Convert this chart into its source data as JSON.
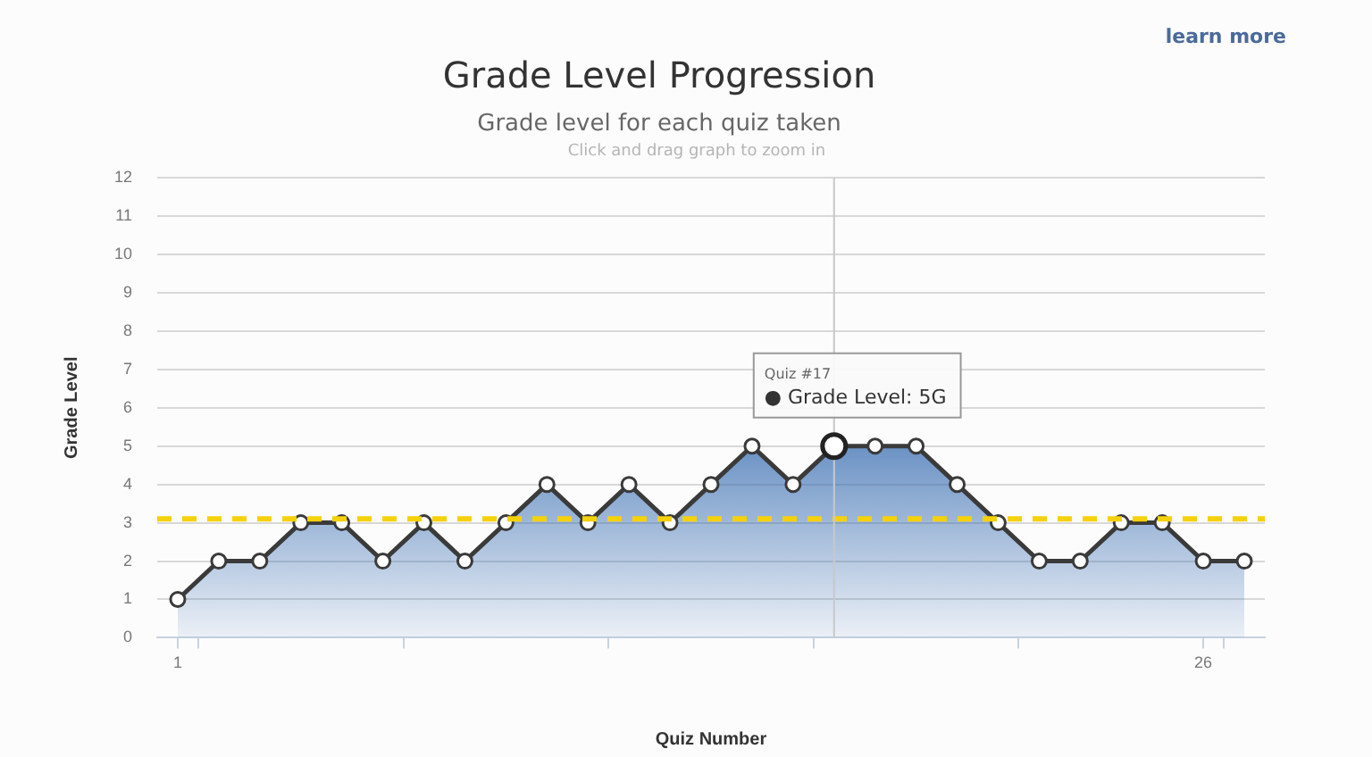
{
  "chart_data": {
    "type": "area",
    "title": "Grade Level Progression",
    "subtitle": "Grade level for each quiz taken",
    "xlabel": "Quiz Number",
    "ylabel": "Grade Level",
    "annotations": [
      "Click and drag graph to zoom in",
      "learn more",
      "Quiz #17",
      "● Grade Level: 5G"
    ],
    "x": [
      1,
      2,
      3,
      4,
      5,
      6,
      7,
      8,
      9,
      10,
      11,
      12,
      13,
      14,
      15,
      16,
      17,
      18,
      19,
      20,
      21,
      22,
      23,
      24,
      25,
      26,
      27
    ],
    "series": [
      {
        "color": "#2f66ad",
        "values": [
          1,
          2,
          2,
          3,
          3,
          2,
          3,
          2,
          3,
          4,
          3,
          4,
          3,
          4,
          5,
          4,
          5,
          5,
          5,
          4,
          3,
          2,
          2,
          3,
          3,
          2,
          2
        ]
      }
    ],
    "xlim": [
      0.5,
      27.5
    ],
    "xticks": [
      {
        "value": 1,
        "label": "1"
      },
      {
        "value": 1.5,
        "label": null
      },
      {
        "value": 6.5,
        "label": null
      },
      {
        "value": 11.5,
        "label": null
      },
      {
        "value": 16.5,
        "label": null
      },
      {
        "value": 21.5,
        "label": null
      },
      {
        "value": 26,
        "label": "26"
      },
      {
        "value": 26.5,
        "label": null
      }
    ],
    "ylim": [
      0,
      12
    ],
    "yticks": [
      0,
      1,
      2,
      3,
      4,
      5,
      6,
      7,
      8,
      9,
      10,
      11,
      12
    ],
    "ref_lines": [
      {
        "axis": "y",
        "value": 3.1,
        "color": "#f5d10a",
        "line_style": "dashed"
      },
      {
        "axis": "x",
        "value": 17,
        "color": "#c8c8c8",
        "line_style": "solid"
      }
    ],
    "grid": "y",
    "legend": false,
    "marker": "circle",
    "line_style": "solid"
  }
}
